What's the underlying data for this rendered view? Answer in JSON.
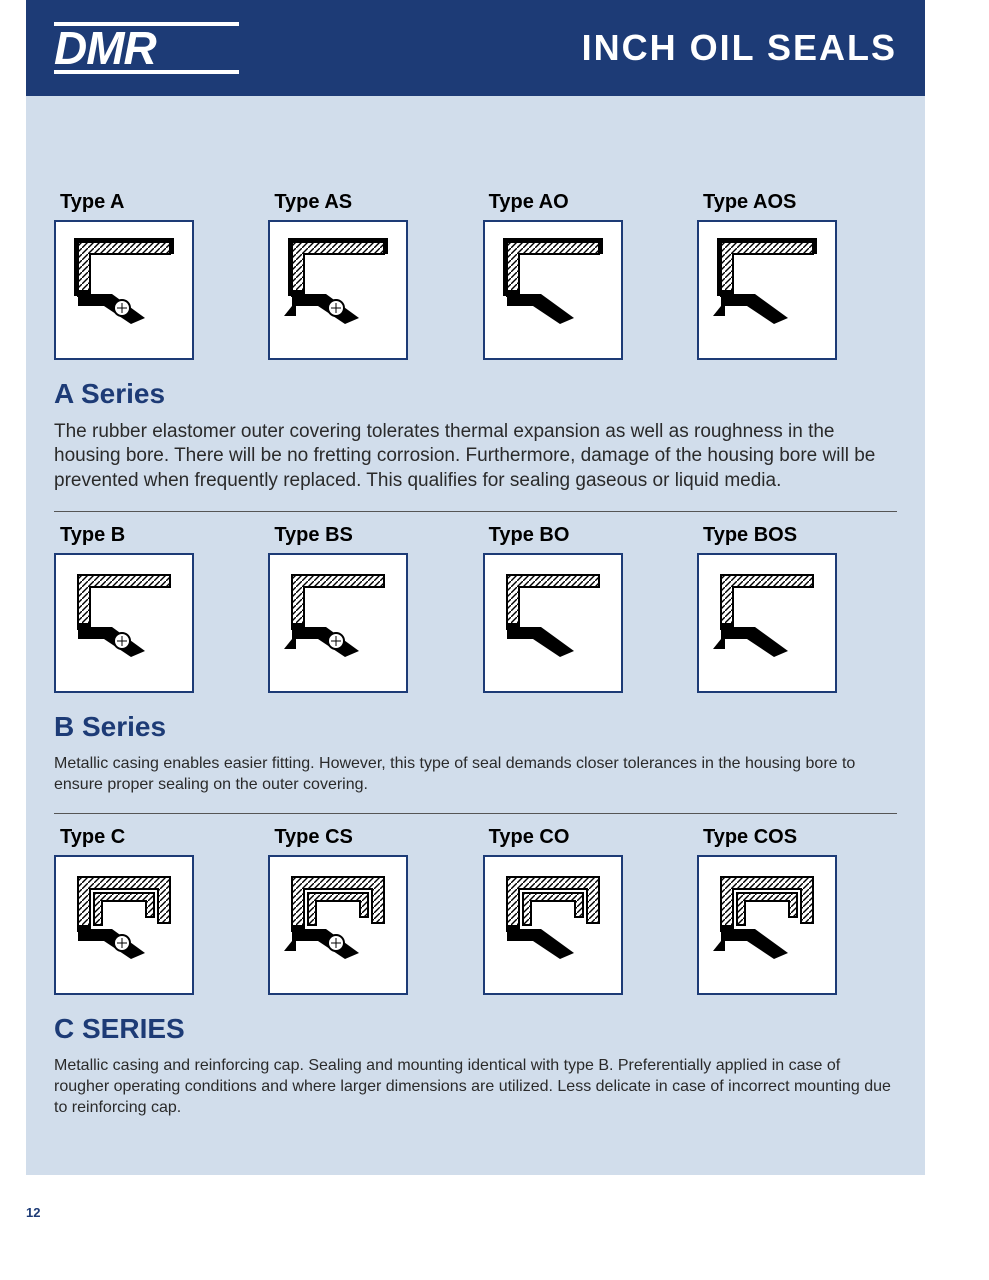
{
  "colors": {
    "brand_blue": "#1d3b76",
    "page_bg": "#d1ddeb",
    "box_border": "#1d3b76",
    "box_bg": "#ffffff",
    "text": "#2a2a2a",
    "heading": "#1d3b76",
    "white": "#ffffff"
  },
  "logo_text": "DMR",
  "banner_title": "INCH OIL SEALS",
  "page_number": "12",
  "series": [
    {
      "key": "a",
      "title": "A Series",
      "types": [
        {
          "label": "Type A",
          "spring": true,
          "dust_lip": false,
          "outer_hatch": true,
          "double_case": false
        },
        {
          "label": "Type AS",
          "spring": true,
          "dust_lip": true,
          "outer_hatch": true,
          "double_case": false
        },
        {
          "label": "Type AO",
          "spring": false,
          "dust_lip": false,
          "outer_hatch": true,
          "double_case": false
        },
        {
          "label": "Type AOS",
          "spring": false,
          "dust_lip": true,
          "outer_hatch": true,
          "double_case": false
        }
      ],
      "body": "The rubber elastomer outer covering tolerates thermal expansion as well as roughness in the housing bore. There will be no fretting corrosion. Furthermore, damage of the housing bore will be prevented when frequently replaced. This qualifies for sealing gaseous or liquid media.",
      "body_class": "series-text1"
    },
    {
      "key": "b",
      "title": "B Series",
      "types": [
        {
          "label": "Type B",
          "spring": true,
          "dust_lip": false,
          "outer_hatch": false,
          "double_case": false
        },
        {
          "label": "Type BS",
          "spring": true,
          "dust_lip": true,
          "outer_hatch": false,
          "double_case": false
        },
        {
          "label": "Type BO",
          "spring": false,
          "dust_lip": false,
          "outer_hatch": false,
          "double_case": false
        },
        {
          "label": "Type BOS",
          "spring": false,
          "dust_lip": true,
          "outer_hatch": false,
          "double_case": false
        }
      ],
      "body": "Metallic casing enables easier fitting. However, this type of seal demands closer tolerances in the housing bore to ensure proper sealing on the outer covering.",
      "body_class": "series-text2"
    },
    {
      "key": "c",
      "title": "C SERIES",
      "types": [
        {
          "label": "Type C",
          "spring": true,
          "dust_lip": false,
          "outer_hatch": false,
          "double_case": true
        },
        {
          "label": "Type CS",
          "spring": true,
          "dust_lip": true,
          "outer_hatch": false,
          "double_case": true
        },
        {
          "label": "Type CO",
          "spring": false,
          "dust_lip": false,
          "outer_hatch": false,
          "double_case": true
        },
        {
          "label": "Type COS",
          "spring": false,
          "dust_lip": true,
          "outer_hatch": false,
          "double_case": true
        }
      ],
      "body": "Metallic casing and reinforcing cap. Sealing and mounting identical with type B. Preferentially applied in case of rougher operating conditions and where larger dimensions are utilized. Less delicate in case of incorrect mounting due to reinforcing cap.",
      "body_class": "series-text2"
    }
  ]
}
